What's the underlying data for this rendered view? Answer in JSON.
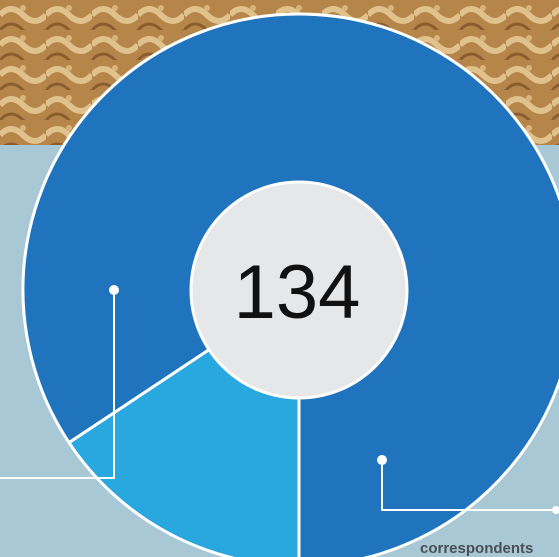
{
  "chart_data": {
    "type": "donut",
    "total_label": "134",
    "values": [
      113,
      21
    ],
    "colors": [
      "#1f74bd",
      "#29a7df"
    ],
    "annotations": [
      "correspondents"
    ]
  }
}
